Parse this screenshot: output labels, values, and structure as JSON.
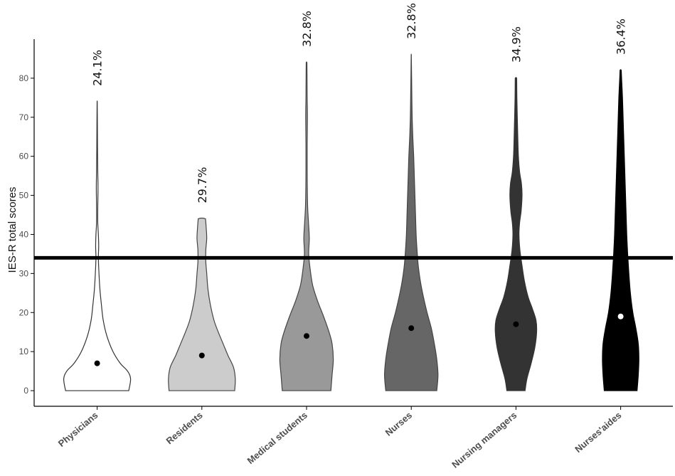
{
  "chart_data": {
    "type": "violin",
    "title": "",
    "xlabel": "",
    "ylabel": "IES-R total scores",
    "ylim": [
      -4,
      90
    ],
    "yticks": [
      0,
      10,
      20,
      30,
      40,
      50,
      60,
      70,
      80
    ],
    "threshold_line": 34,
    "grid": false,
    "legend": "none",
    "categories": [
      "Physicians",
      "Residents",
      "Medical students",
      "Nurses",
      "Nursing managers",
      "Nurses'aides"
    ],
    "groups": [
      {
        "name": "Physicians",
        "percent_label": "24.1%",
        "median": 7,
        "max": 74,
        "fill": "#ffffff",
        "stroke": "#333333",
        "dot_color": "#000000",
        "density": [
          [
            0,
            5.2
          ],
          [
            3,
            5.5
          ],
          [
            5,
            5.0
          ],
          [
            7,
            3.8
          ],
          [
            10,
            2.6
          ],
          [
            14,
            1.6
          ],
          [
            18,
            1.0
          ],
          [
            22,
            0.7
          ],
          [
            26,
            0.45
          ],
          [
            30,
            0.3
          ],
          [
            34,
            0.2
          ],
          [
            37,
            0.25
          ],
          [
            40,
            0.2
          ],
          [
            43,
            0.1
          ],
          [
            47,
            0.1
          ],
          [
            52,
            0.14
          ],
          [
            56,
            0.1
          ],
          [
            62,
            0.06
          ],
          [
            68,
            0.04
          ],
          [
            74,
            0.01
          ]
        ]
      },
      {
        "name": "Residents",
        "percent_label": "29.7%",
        "median": 9,
        "max": 44,
        "fill": "#cccccc",
        "stroke": "#444444",
        "dot_color": "#000000",
        "density": [
          [
            0,
            5.4
          ],
          [
            3,
            5.5
          ],
          [
            6,
            5.2
          ],
          [
            9,
            4.3
          ],
          [
            12,
            3.5
          ],
          [
            15,
            2.7
          ],
          [
            18,
            2.0
          ],
          [
            22,
            1.4
          ],
          [
            26,
            1.0
          ],
          [
            30,
            0.8
          ],
          [
            33,
            0.65
          ],
          [
            36,
            0.65
          ],
          [
            39,
            0.8
          ],
          [
            42,
            0.7
          ],
          [
            44,
            0.6
          ]
        ]
      },
      {
        "name": "Medical students",
        "percent_label": "32.8%",
        "median": 14,
        "max": 84,
        "fill": "#999999",
        "stroke": "#444444",
        "dot_color": "#000000",
        "density": [
          [
            0,
            4.0
          ],
          [
            4,
            4.2
          ],
          [
            8,
            4.4
          ],
          [
            12,
            4.2
          ],
          [
            15,
            3.7
          ],
          [
            19,
            2.8
          ],
          [
            23,
            1.8
          ],
          [
            27,
            1.0
          ],
          [
            31,
            0.6
          ],
          [
            35,
            0.35
          ],
          [
            39,
            0.45
          ],
          [
            43,
            0.32
          ],
          [
            47,
            0.18
          ],
          [
            52,
            0.12
          ],
          [
            57,
            0.1
          ],
          [
            63,
            0.1
          ],
          [
            70,
            0.14
          ],
          [
            75,
            0.1
          ],
          [
            80,
            0.08
          ],
          [
            84,
            0.06
          ]
        ]
      },
      {
        "name": "Nurses",
        "percent_label": "32.8%",
        "median": 16,
        "max": 86,
        "fill": "#666666",
        "stroke": "#444444",
        "dot_color": "#000000",
        "density": [
          [
            0,
            4.2
          ],
          [
            4,
            4.4
          ],
          [
            8,
            4.2
          ],
          [
            12,
            3.8
          ],
          [
            16,
            3.3
          ],
          [
            20,
            2.6
          ],
          [
            24,
            2.0
          ],
          [
            28,
            1.5
          ],
          [
            32,
            1.15
          ],
          [
            36,
            0.95
          ],
          [
            40,
            0.8
          ],
          [
            45,
            0.7
          ],
          [
            50,
            0.6
          ],
          [
            55,
            0.5
          ],
          [
            60,
            0.4
          ],
          [
            65,
            0.25
          ],
          [
            70,
            0.15
          ],
          [
            75,
            0.1
          ],
          [
            80,
            0.06
          ],
          [
            86,
            0.01
          ]
        ]
      },
      {
        "name": "Nursing managers",
        "percent_label": "34.9%",
        "median": 17,
        "max": 80,
        "fill": "#333333",
        "stroke": "#333333",
        "dot_color": "#000000",
        "density": [
          [
            0,
            1.5
          ],
          [
            3,
            1.8
          ],
          [
            7,
            2.5
          ],
          [
            11,
            3.1
          ],
          [
            15,
            3.4
          ],
          [
            18,
            3.3
          ],
          [
            21,
            2.7
          ],
          [
            24,
            2.0
          ],
          [
            28,
            1.4
          ],
          [
            32,
            1.0
          ],
          [
            36,
            0.65
          ],
          [
            40,
            0.5
          ],
          [
            43,
            0.6
          ],
          [
            46,
            0.85
          ],
          [
            50,
            1.0
          ],
          [
            53,
            0.9
          ],
          [
            56,
            0.6
          ],
          [
            60,
            0.4
          ],
          [
            65,
            0.3
          ],
          [
            70,
            0.22
          ],
          [
            75,
            0.15
          ],
          [
            80,
            0.12
          ]
        ]
      },
      {
        "name": "Nurses'aides",
        "percent_label": "36.4%",
        "median": 19,
        "max": 82,
        "fill": "#000000",
        "stroke": "#000000",
        "dot_color": "#ffffff",
        "density": [
          [
            0,
            2.7
          ],
          [
            4,
            2.9
          ],
          [
            8,
            3.0
          ],
          [
            12,
            2.9
          ],
          [
            16,
            2.5
          ],
          [
            20,
            2.0
          ],
          [
            25,
            1.6
          ],
          [
            30,
            1.35
          ],
          [
            35,
            1.15
          ],
          [
            40,
            1.0
          ],
          [
            45,
            0.9
          ],
          [
            50,
            0.8
          ],
          [
            55,
            0.7
          ],
          [
            60,
            0.6
          ],
          [
            65,
            0.5
          ],
          [
            70,
            0.4
          ],
          [
            75,
            0.3
          ],
          [
            80,
            0.15
          ],
          [
            82,
            0.1
          ]
        ]
      }
    ]
  },
  "colors": {
    "axis": "#000000",
    "threshold": "#000000",
    "background": "#ffffff"
  }
}
